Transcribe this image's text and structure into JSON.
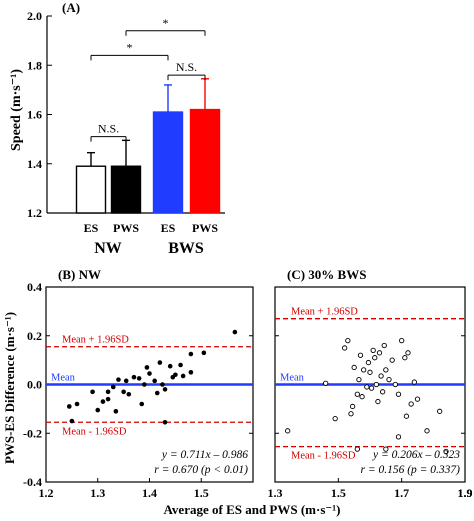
{
  "chart_data": [
    {
      "panel": "(A)",
      "type": "bar",
      "ylabel": "Speed (m·s⁻¹)",
      "ylim": [
        1.2,
        2.0
      ],
      "yticks": [
        "1.2",
        "1.4",
        "1.6",
        "1.8",
        "2.0"
      ],
      "groups": [
        "NW",
        "BWS"
      ],
      "bars": [
        {
          "label": "ES",
          "group": "NW",
          "value": 1.39,
          "err": 0.055,
          "color": "#ffffff"
        },
        {
          "label": "PWS",
          "group": "NW",
          "value": 1.39,
          "err": 0.105,
          "color": "#000000"
        },
        {
          "label": "ES",
          "group": "BWS",
          "value": 1.61,
          "err": 0.11,
          "color": "#1f3cff"
        },
        {
          "label": "PWS",
          "group": "BWS",
          "value": 1.62,
          "err": 0.125,
          "color": "#ff0000"
        }
      ],
      "annotations": [
        {
          "text": "N.S.",
          "between": [
            0,
            1
          ],
          "y": 1.51
        },
        {
          "text": "N.S.",
          "between": [
            2,
            3
          ],
          "y": 1.76
        },
        {
          "text": "*",
          "between": [
            0,
            2
          ],
          "y": 1.84
        },
        {
          "text": "*",
          "between": [
            1,
            3
          ],
          "y": 1.94
        }
      ]
    },
    {
      "panel": "(B) NW",
      "type": "scatter",
      "xlim": [
        1.2,
        1.6
      ],
      "ylim": [
        -0.4,
        0.4
      ],
      "xticks": [
        "1.2",
        "1.3",
        "1.4",
        "1.5"
      ],
      "yticks": [
        "-0.4",
        "-0.2",
        "0.0",
        "0.2",
        "0.4"
      ],
      "marker": "filled",
      "mean": 0.0,
      "upper": 0.155,
      "lower": -0.155,
      "labels": {
        "upper": "Mean + 1.96SD",
        "mean": "Mean",
        "lower": "Mean - 1.96SD"
      },
      "regression": [
        "y = 0.711x – 0.986",
        "r = 0.670 (p < 0.01)"
      ],
      "points": [
        [
          1.245,
          -0.09
        ],
        [
          1.25,
          -0.15
        ],
        [
          1.26,
          -0.08
        ],
        [
          1.29,
          -0.03
        ],
        [
          1.3,
          -0.105
        ],
        [
          1.31,
          -0.07
        ],
        [
          1.32,
          -0.06
        ],
        [
          1.32,
          -0.03
        ],
        [
          1.33,
          -0.01
        ],
        [
          1.34,
          0.02
        ],
        [
          1.335,
          -0.11
        ],
        [
          1.35,
          -0.03
        ],
        [
          1.355,
          0.015
        ],
        [
          1.36,
          -0.04
        ],
        [
          1.37,
          0.03
        ],
        [
          1.38,
          0.025
        ],
        [
          1.385,
          -0.08
        ],
        [
          1.39,
          0.0
        ],
        [
          1.395,
          0.07
        ],
        [
          1.4,
          0.045
        ],
        [
          1.41,
          0.015
        ],
        [
          1.415,
          -0.035
        ],
        [
          1.42,
          0.09
        ],
        [
          1.425,
          0.0
        ],
        [
          1.43,
          -0.02
        ],
        [
          1.44,
          0.075
        ],
        [
          1.445,
          0.03
        ],
        [
          1.45,
          0.04
        ],
        [
          1.46,
          0.08
        ],
        [
          1.465,
          0.035
        ],
        [
          1.48,
          0.05
        ],
        [
          1.48,
          0.125
        ],
        [
          1.505,
          0.13
        ],
        [
          1.43,
          -0.155
        ],
        [
          1.565,
          0.215
        ]
      ]
    },
    {
      "panel": "(C) 30% BWS",
      "type": "scatter",
      "xlim": [
        1.3,
        1.9
      ],
      "ylim": [
        -0.4,
        0.4
      ],
      "xticks": [
        "1.3",
        "1.5",
        "1.7",
        "1.9"
      ],
      "yticks": [
        "-0.4",
        "-0.2",
        "0.0",
        "0.2",
        "0.4"
      ],
      "marker": "open",
      "mean": 0.0,
      "upper": 0.27,
      "lower": -0.255,
      "labels": {
        "upper": "Mean + 1.96SD",
        "mean": "Mean",
        "lower": "Mean - 1.96SD"
      },
      "regression": [
        "y = 0.206x – 0.323",
        "r = 0.156 (p = 0.337)"
      ],
      "points": [
        [
          1.34,
          -0.19
        ],
        [
          1.46,
          0.005
        ],
        [
          1.49,
          -0.14
        ],
        [
          1.52,
          0.15
        ],
        [
          1.53,
          0.18
        ],
        [
          1.54,
          -0.12
        ],
        [
          1.545,
          -0.09
        ],
        [
          1.55,
          0.07
        ],
        [
          1.56,
          -0.04
        ],
        [
          1.565,
          0.02
        ],
        [
          1.57,
          0.12
        ],
        [
          1.575,
          -0.05
        ],
        [
          1.58,
          0.06
        ],
        [
          1.59,
          -0.01
        ],
        [
          1.595,
          0.09
        ],
        [
          1.6,
          0.05
        ],
        [
          1.605,
          -0.015
        ],
        [
          1.61,
          0.14
        ],
        [
          1.615,
          0.11
        ],
        [
          1.62,
          0.0
        ],
        [
          1.625,
          -0.07
        ],
        [
          1.63,
          0.13
        ],
        [
          1.635,
          0.035
        ],
        [
          1.64,
          -0.03
        ],
        [
          1.645,
          0.16
        ],
        [
          1.65,
          0.06
        ],
        [
          1.66,
          0.02
        ],
        [
          1.67,
          0.1
        ],
        [
          1.68,
          0.0
        ],
        [
          1.69,
          -0.04
        ],
        [
          1.7,
          0.18
        ],
        [
          1.71,
          0.11
        ],
        [
          1.715,
          -0.13
        ],
        [
          1.72,
          0.13
        ],
        [
          1.73,
          -0.08
        ],
        [
          1.74,
          0.01
        ],
        [
          1.75,
          -0.06
        ],
        [
          1.78,
          -0.19
        ],
        [
          1.82,
          -0.11
        ],
        [
          1.56,
          -0.265
        ],
        [
          1.65,
          -0.265
        ],
        [
          1.69,
          -0.215
        ],
        [
          1.84,
          -0.275
        ]
      ]
    }
  ],
  "shared": {
    "ylabel_bottom": "PWS-ES Difference (m·s⁻¹)",
    "xlabel_bottom": "Average of ES and PWS (m·s⁻¹)"
  },
  "colors": {
    "mean_line": "#1f3cff",
    "limit_line": "#d00000",
    "limit_text": "#d00000",
    "mean_text": "#1f3cff"
  }
}
